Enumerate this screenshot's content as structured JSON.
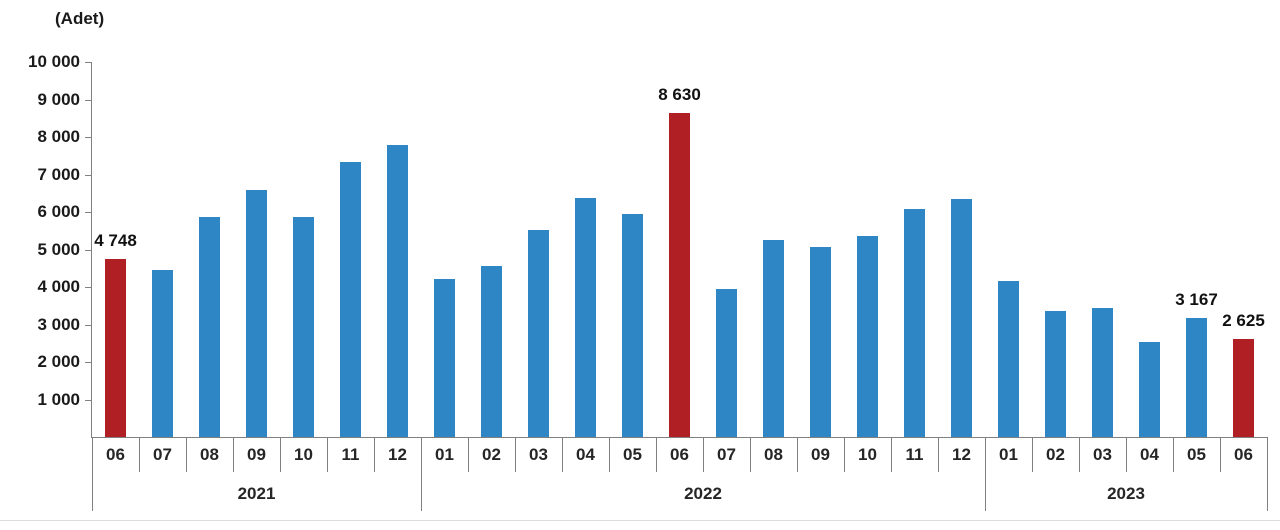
{
  "chart_data": {
    "type": "bar",
    "title": "",
    "unit_label": "(Adet)",
    "ylim": [
      0,
      10000
    ],
    "y_tick_step": 1000,
    "grid": false,
    "legend": "none",
    "colors": {
      "bar": "#2e86c5",
      "highlight": "#b01f24",
      "axis": "#808080",
      "text": "#1a1a1a"
    },
    "y_axis": {
      "ticks": [
        {
          "value": 10000,
          "label": "10 000"
        },
        {
          "value": 9000,
          "label": "9 000"
        },
        {
          "value": 8000,
          "label": "8 000"
        },
        {
          "value": 7000,
          "label": "7 000"
        },
        {
          "value": 6000,
          "label": "6 000"
        },
        {
          "value": 5000,
          "label": "5 000"
        },
        {
          "value": 4000,
          "label": "4 000"
        },
        {
          "value": 3000,
          "label": "3 000"
        },
        {
          "value": 2000,
          "label": "2 000"
        },
        {
          "value": 1000,
          "label": "1 000"
        }
      ]
    },
    "groups": [
      {
        "year": "2021",
        "months": 7
      },
      {
        "year": "2022",
        "months": 12
      },
      {
        "year": "2023",
        "months": 6
      }
    ],
    "bars": [
      {
        "month": "06",
        "value": 4748,
        "highlight": true,
        "label": "4 748"
      },
      {
        "month": "07",
        "value": 4460,
        "highlight": false
      },
      {
        "month": "08",
        "value": 5860,
        "highlight": false
      },
      {
        "month": "09",
        "value": 6600,
        "highlight": false
      },
      {
        "month": "10",
        "value": 5870,
        "highlight": false
      },
      {
        "month": "11",
        "value": 7330,
        "highlight": false
      },
      {
        "month": "12",
        "value": 7800,
        "highlight": false
      },
      {
        "month": "01",
        "value": 4210,
        "highlight": false
      },
      {
        "month": "02",
        "value": 4570,
        "highlight": false
      },
      {
        "month": "03",
        "value": 5520,
        "highlight": false
      },
      {
        "month": "04",
        "value": 6370,
        "highlight": false
      },
      {
        "month": "05",
        "value": 5950,
        "highlight": false
      },
      {
        "month": "06",
        "value": 8630,
        "highlight": true,
        "label": "8 630"
      },
      {
        "month": "07",
        "value": 3950,
        "highlight": false
      },
      {
        "month": "08",
        "value": 5260,
        "highlight": false
      },
      {
        "month": "09",
        "value": 5060,
        "highlight": false
      },
      {
        "month": "10",
        "value": 5370,
        "highlight": false
      },
      {
        "month": "11",
        "value": 6080,
        "highlight": false
      },
      {
        "month": "12",
        "value": 6350,
        "highlight": false
      },
      {
        "month": "01",
        "value": 4170,
        "highlight": false
      },
      {
        "month": "02",
        "value": 3350,
        "highlight": false
      },
      {
        "month": "03",
        "value": 3430,
        "highlight": false
      },
      {
        "month": "04",
        "value": 2540,
        "highlight": false
      },
      {
        "month": "05",
        "value": 3167,
        "highlight": false,
        "label": "3 167"
      },
      {
        "month": "06",
        "value": 2625,
        "highlight": true,
        "label": "2 625"
      }
    ]
  }
}
